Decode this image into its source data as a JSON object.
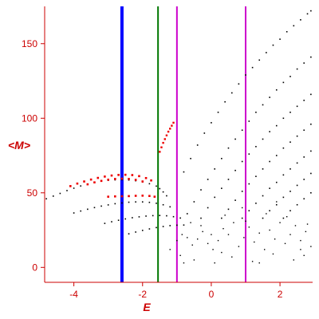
{
  "chart_data": {
    "type": "scatter",
    "xlabel": "E",
    "ylabel": "<M>",
    "xlim": [
      -4.85,
      2.95
    ],
    "ylim": [
      -10,
      175
    ],
    "xticks": [
      -4,
      -2,
      0,
      2
    ],
    "yticks": [
      0,
      50,
      100,
      150
    ],
    "xtick_labels": [
      "-4",
      "-2",
      "0",
      "2"
    ],
    "ytick_labels": [
      "0",
      "50",
      "100",
      "150"
    ],
    "grid": false,
    "colors": {
      "axis": "#cc0000",
      "red_points": "#ee0000",
      "black_points": "#000000"
    },
    "vertical_lines": [
      {
        "x": -2.6,
        "color": "#0000ff"
      },
      {
        "x": -1.55,
        "color": "#007700"
      },
      {
        "x": -1.0,
        "color": "#cc00cc"
      },
      {
        "x": 1.0,
        "color": "#cc00cc"
      }
    ],
    "series": [
      {
        "points": [
          [
            -4.8,
            46.0
          ],
          [
            -4.6,
            47.8
          ],
          [
            -4.4,
            49.6
          ],
          [
            -4.2,
            51.5
          ],
          [
            -4.0,
            53.1
          ],
          [
            -3.8,
            54.6
          ],
          [
            -3.6,
            55.8
          ],
          [
            -3.4,
            56.9
          ],
          [
            -3.2,
            57.8
          ],
          [
            -3.0,
            58.4
          ],
          [
            -2.8,
            58.7
          ],
          [
            -2.6,
            58.8
          ],
          [
            -2.4,
            58.6
          ],
          [
            -2.2,
            58.1
          ],
          [
            -2.0,
            57.3
          ],
          [
            -1.8,
            56.1
          ],
          [
            -1.6,
            54.5
          ],
          [
            -1.5,
            52.8
          ],
          [
            -1.4,
            50.6
          ],
          [
            -1.3,
            48.0
          ]
        ],
        "color": "#000000",
        "size": 1.6
      },
      {
        "points": [
          [
            -4.0,
            36.5
          ],
          [
            -3.8,
            37.8
          ],
          [
            -3.6,
            39.0
          ],
          [
            -3.4,
            40.1
          ],
          [
            -3.2,
            41.1
          ],
          [
            -3.0,
            41.9
          ],
          [
            -2.8,
            42.7
          ],
          [
            -2.6,
            43.2
          ],
          [
            -2.4,
            43.7
          ],
          [
            -2.2,
            43.9
          ],
          [
            -2.0,
            43.9
          ],
          [
            -1.8,
            43.6
          ],
          [
            -1.6,
            43.0
          ],
          [
            -1.4,
            42.0
          ],
          [
            -1.2,
            40.6
          ]
        ],
        "color": "#000000",
        "size": 1.6
      },
      {
        "points": [
          [
            -3.1,
            29.5
          ],
          [
            -2.9,
            30.6
          ],
          [
            -2.7,
            31.6
          ],
          [
            -2.5,
            32.5
          ],
          [
            -2.3,
            33.3
          ],
          [
            -2.1,
            33.9
          ],
          [
            -1.9,
            34.4
          ],
          [
            -1.7,
            34.7
          ],
          [
            -1.5,
            34.8
          ],
          [
            -1.3,
            34.6
          ],
          [
            -1.1,
            34.0
          ],
          [
            -0.9,
            33.1
          ]
        ],
        "color": "#000000",
        "size": 1.6
      },
      {
        "points": [
          [
            -2.4,
            22.5
          ],
          [
            -2.2,
            23.7
          ],
          [
            -2.0,
            24.8
          ],
          [
            -1.8,
            25.8
          ],
          [
            -1.6,
            26.7
          ],
          [
            -1.4,
            27.4
          ],
          [
            -1.2,
            28.0
          ],
          [
            -1.0,
            28.3
          ],
          [
            -0.8,
            28.4
          ]
        ],
        "color": "#000000",
        "size": 1.6
      },
      {
        "points": [
          [
            -0.8,
            64
          ],
          [
            -0.6,
            73
          ],
          [
            -0.4,
            82
          ],
          [
            -0.2,
            90
          ],
          [
            0.0,
            97
          ],
          [
            0.2,
            104
          ],
          [
            0.4,
            111
          ],
          [
            0.6,
            117
          ],
          [
            0.8,
            123
          ],
          [
            1.0,
            129
          ],
          [
            1.2,
            134
          ],
          [
            1.4,
            139
          ],
          [
            1.6,
            144
          ],
          [
            1.8,
            149
          ],
          [
            2.0,
            153
          ],
          [
            2.2,
            158
          ],
          [
            2.4,
            162
          ],
          [
            2.6,
            166
          ],
          [
            2.8,
            170
          ],
          [
            2.9,
            172
          ]
        ],
        "color": "#000000",
        "size": 1.6
      },
      {
        "points": [
          [
            -0.7,
            36
          ],
          [
            -0.5,
            44
          ],
          [
            -0.3,
            52
          ],
          [
            -0.1,
            59
          ],
          [
            0.1,
            66
          ],
          [
            0.3,
            73
          ],
          [
            0.5,
            80
          ],
          [
            0.7,
            86
          ],
          [
            0.9,
            92
          ],
          [
            1.1,
            98
          ],
          [
            1.3,
            104
          ],
          [
            1.5,
            109
          ],
          [
            1.7,
            114
          ],
          [
            1.9,
            119
          ],
          [
            2.1,
            124
          ],
          [
            2.3,
            128
          ],
          [
            2.5,
            133
          ],
          [
            2.7,
            137
          ],
          [
            2.9,
            141
          ]
        ],
        "color": "#000000",
        "size": 1.6
      },
      {
        "points": [
          [
            -0.3,
            33
          ],
          [
            -0.1,
            40
          ],
          [
            0.1,
            47
          ],
          [
            0.3,
            53
          ],
          [
            0.5,
            59
          ],
          [
            0.7,
            65
          ],
          [
            0.9,
            71
          ],
          [
            1.1,
            76
          ],
          [
            1.3,
            81
          ],
          [
            1.5,
            86
          ],
          [
            1.7,
            91
          ],
          [
            1.9,
            95
          ],
          [
            2.1,
            100
          ],
          [
            2.3,
            104
          ],
          [
            2.5,
            108
          ],
          [
            2.7,
            112
          ],
          [
            2.9,
            116
          ]
        ],
        "color": "#000000",
        "size": 1.6
      },
      {
        "points": [
          [
            0.3,
            33
          ],
          [
            0.5,
            39
          ],
          [
            0.7,
            45
          ],
          [
            0.9,
            51
          ],
          [
            1.1,
            56
          ],
          [
            1.3,
            61
          ],
          [
            1.5,
            66
          ],
          [
            1.7,
            71
          ],
          [
            1.9,
            75
          ],
          [
            2.1,
            80
          ],
          [
            2.3,
            84
          ],
          [
            2.5,
            88
          ],
          [
            2.7,
            92
          ],
          [
            2.9,
            96
          ]
        ],
        "color": "#000000",
        "size": 1.6
      },
      {
        "points": [
          [
            0.9,
            33
          ],
          [
            1.1,
            38
          ],
          [
            1.3,
            43
          ],
          [
            1.5,
            48
          ],
          [
            1.7,
            53
          ],
          [
            1.9,
            57
          ],
          [
            2.1,
            62
          ],
          [
            2.3,
            66
          ],
          [
            2.5,
            70
          ],
          [
            2.7,
            74
          ],
          [
            2.9,
            78
          ]
        ],
        "color": "#000000",
        "size": 1.6
      },
      {
        "points": [
          [
            1.5,
            33
          ],
          [
            1.7,
            38
          ],
          [
            1.9,
            42
          ],
          [
            2.1,
            47
          ],
          [
            2.3,
            51
          ],
          [
            2.5,
            55
          ],
          [
            2.7,
            59
          ],
          [
            2.9,
            63
          ]
        ],
        "color": "#000000",
        "size": 1.6
      },
      {
        "points": [
          [
            2.1,
            33
          ],
          [
            2.3,
            38
          ],
          [
            2.5,
            42
          ],
          [
            2.7,
            46
          ],
          [
            2.9,
            50
          ]
        ],
        "color": "#000000",
        "size": 1.6
      },
      {
        "points": [
          [
            -1.0,
            18
          ],
          [
            -0.85,
            22
          ],
          [
            -0.7,
            20
          ],
          [
            -0.55,
            15
          ],
          [
            -0.4,
            19
          ],
          [
            -0.25,
            24
          ],
          [
            -0.1,
            16
          ],
          [
            0.05,
            12
          ],
          [
            0.2,
            18
          ],
          [
            0.35,
            26
          ],
          [
            0.5,
            22
          ],
          [
            0.65,
            30
          ],
          [
            0.8,
            14
          ],
          [
            0.95,
            20
          ],
          [
            1.1,
            27
          ],
          [
            1.25,
            17
          ],
          [
            1.4,
            23
          ],
          [
            1.55,
            12
          ],
          [
            1.7,
            25
          ],
          [
            1.85,
            19
          ],
          [
            2.0,
            30
          ],
          [
            2.15,
            16
          ],
          [
            2.3,
            22
          ],
          [
            2.45,
            28
          ],
          [
            2.6,
            18
          ],
          [
            2.75,
            24
          ],
          [
            2.9,
            14
          ],
          [
            -0.9,
            8
          ],
          [
            -0.5,
            5
          ],
          [
            0.1,
            3
          ],
          [
            0.6,
            7
          ],
          [
            1.2,
            4
          ],
          [
            1.8,
            9
          ],
          [
            2.4,
            5
          ],
          [
            -0.3,
            28
          ],
          [
            0.4,
            35
          ],
          [
            1.0,
            31
          ],
          [
            1.6,
            36
          ],
          [
            2.2,
            34
          ],
          [
            2.8,
            29
          ],
          [
            -0.6,
            30
          ],
          [
            0.0,
            22
          ],
          [
            0.9,
            40
          ],
          [
            1.9,
            44
          ],
          [
            2.6,
            12
          ],
          [
            -1.2,
            12
          ],
          [
            -0.8,
            3
          ],
          [
            0.3,
            10
          ],
          [
            1.4,
            3
          ],
          [
            2.7,
            8
          ]
        ],
        "color": "#000000",
        "size": 1.4
      },
      {
        "points": [
          [
            -4.1,
            54.5
          ],
          [
            -3.9,
            56.2
          ],
          [
            -3.7,
            57.6
          ],
          [
            -3.5,
            58.9
          ],
          [
            -3.3,
            60.0
          ],
          [
            -3.1,
            60.9
          ],
          [
            -2.9,
            61.6
          ],
          [
            -2.7,
            62.0
          ],
          [
            -2.5,
            62.1
          ],
          [
            -2.3,
            61.9
          ],
          [
            -2.1,
            61.2
          ],
          [
            -1.9,
            59.9
          ],
          [
            -1.75,
            58.3
          ],
          [
            -3.6,
            55.7
          ],
          [
            -3.4,
            57.0
          ],
          [
            -3.2,
            58.0
          ],
          [
            -3.0,
            58.8
          ],
          [
            -2.8,
            59.3
          ],
          [
            -2.6,
            59.5
          ],
          [
            -2.4,
            59.3
          ],
          [
            -2.2,
            58.7
          ],
          [
            -2.0,
            57.6
          ]
        ],
        "color": "#ee0000",
        "size": 2.6
      },
      {
        "points": [
          [
            -3.0,
            47.4
          ],
          [
            -2.8,
            47.6
          ],
          [
            -2.6,
            47.7
          ],
          [
            -2.4,
            47.8
          ],
          [
            -2.2,
            48.0
          ],
          [
            -2.0,
            48.1
          ],
          [
            -1.8,
            47.9
          ],
          [
            -1.65,
            47.4
          ]
        ],
        "color": "#ee0000",
        "size": 2.6
      },
      {
        "points": [
          [
            -1.5,
            77.5
          ],
          [
            -1.45,
            80.5
          ],
          [
            -1.4,
            83.5
          ],
          [
            -1.35,
            86.0
          ],
          [
            -1.3,
            88.5
          ],
          [
            -1.25,
            91.0
          ],
          [
            -1.2,
            93.0
          ],
          [
            -1.15,
            95.0
          ],
          [
            -1.1,
            97.0
          ]
        ],
        "color": "#ee0000",
        "size": 2.4
      }
    ]
  }
}
